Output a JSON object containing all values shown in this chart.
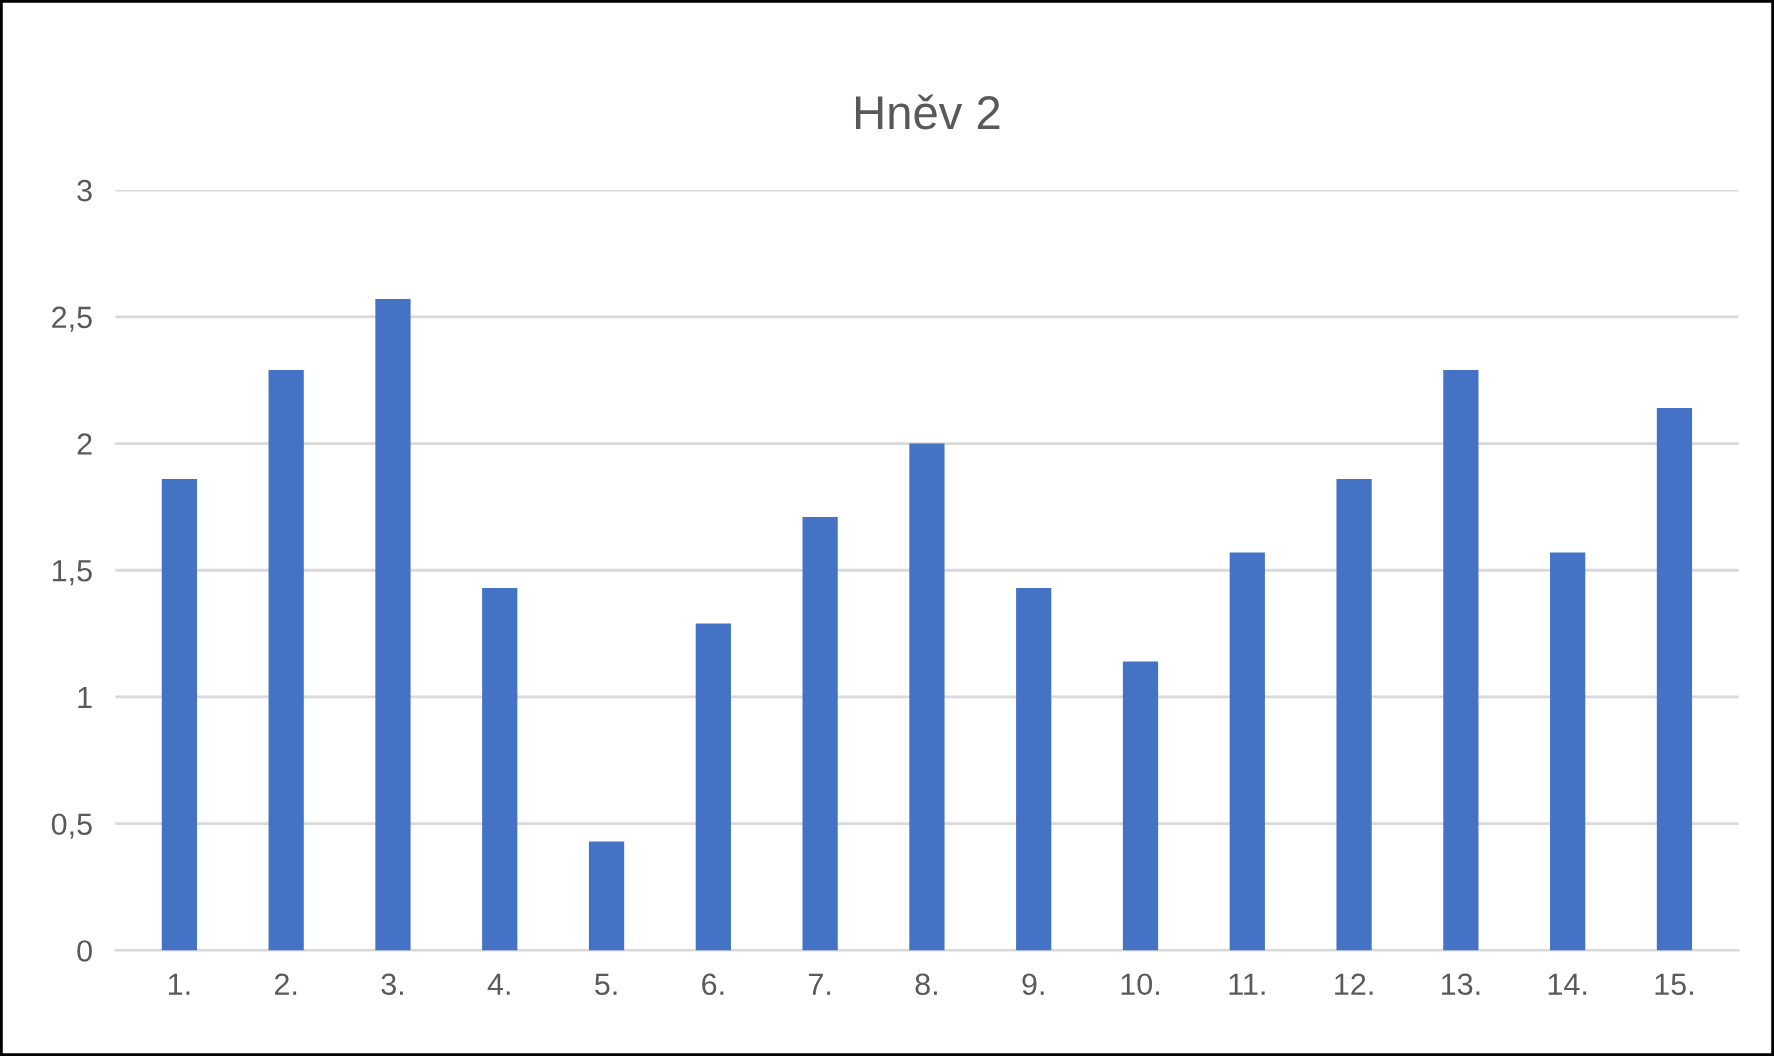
{
  "chart_data": {
    "type": "bar",
    "title": "Hněv 2",
    "categories": [
      "1.",
      "2.",
      "3.",
      "4.",
      "5.",
      "6.",
      "7.",
      "8.",
      "9.",
      "10.",
      "11.",
      "12.",
      "13.",
      "14.",
      "15."
    ],
    "values": [
      1.86,
      2.29,
      2.57,
      1.43,
      0.43,
      1.29,
      1.71,
      2.0,
      1.43,
      1.14,
      1.57,
      1.86,
      2.29,
      1.57,
      2.14
    ],
    "color": "#4472c4",
    "ylim": [
      0,
      3
    ],
    "yticks": [
      0,
      {
        "value": 0.5,
        "label": "0,5"
      },
      1,
      {
        "value": 1.5,
        "label": "1,5"
      },
      2,
      {
        "value": 2.5,
        "label": "2,5"
      },
      3
    ],
    "grid": "y",
    "legend": false
  }
}
